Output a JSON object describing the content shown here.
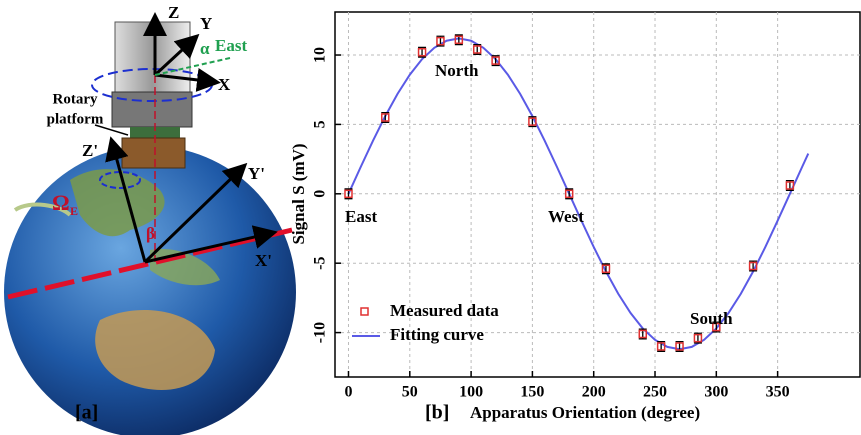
{
  "diagram": {
    "labels": {
      "z": "Z",
      "y": "Y",
      "x": "X",
      "alpha": "α",
      "east": "East",
      "platform_1": "Rotary",
      "platform_2": "platform",
      "z_prime": "Z'",
      "y_prime": "Y'",
      "x_prime": "X'",
      "omega": "Ω",
      "omega_sub": "E",
      "beta": "β"
    },
    "panel": "[a]"
  },
  "chart_data": {
    "type": "scatter",
    "panel": "[b]",
    "xlabel": "Apparatus Orientation (degree)",
    "ylabel": "Signal S  (mV)",
    "annotations": [
      "North",
      "East",
      "West",
      "South"
    ],
    "xlim": [
      -11,
      418
    ],
    "ylim": [
      -13.2,
      13.1
    ],
    "xticks": [
      0,
      50,
      100,
      150,
      200,
      250,
      300,
      350
    ],
    "yticks": [
      -10,
      -5,
      0,
      5,
      10
    ],
    "grid": true,
    "series": [
      {
        "name": "Measured data",
        "color": "#e03030",
        "x": [
          0,
          30,
          60,
          75,
          90,
          105,
          120,
          150,
          180,
          210,
          240,
          255,
          270,
          285,
          300,
          330,
          360
        ],
        "values": [
          0,
          5.5,
          10.2,
          11.0,
          11.1,
          10.4,
          9.6,
          5.2,
          0,
          -5.4,
          -10.1,
          -11.0,
          -11.0,
          -10.4,
          -9.6,
          -5.2,
          0.6
        ],
        "errors": [
          0.35,
          0.35,
          0.35,
          0.35,
          0.35,
          0.35,
          0.35,
          0.35,
          0.35,
          0.35,
          0.35,
          0.35,
          0.35,
          0.35,
          0.35,
          0.35,
          0.35
        ]
      },
      {
        "name": "Fitting curve",
        "color": "#5a5ae6",
        "x": [
          0,
          10,
          20,
          30,
          40,
          50,
          60,
          70,
          80,
          90,
          100,
          110,
          120,
          130,
          140,
          150,
          160,
          170,
          180,
          190,
          200,
          210,
          220,
          230,
          240,
          250,
          260,
          270,
          280,
          290,
          300,
          310,
          320,
          330,
          340,
          350,
          360,
          370,
          375
        ],
        "values": [
          0,
          1.94,
          3.83,
          5.6,
          7.2,
          8.58,
          9.7,
          10.52,
          11.03,
          11.2,
          11.03,
          10.52,
          9.7,
          8.58,
          7.2,
          5.6,
          3.83,
          1.94,
          0,
          -1.94,
          -3.83,
          -5.6,
          -7.2,
          -8.58,
          -9.7,
          -10.52,
          -11.03,
          -11.2,
          -11.03,
          -10.52,
          -9.7,
          -8.58,
          -7.2,
          -5.6,
          -3.83,
          -1.94,
          0,
          1.94,
          2.9
        ]
      }
    ]
  }
}
